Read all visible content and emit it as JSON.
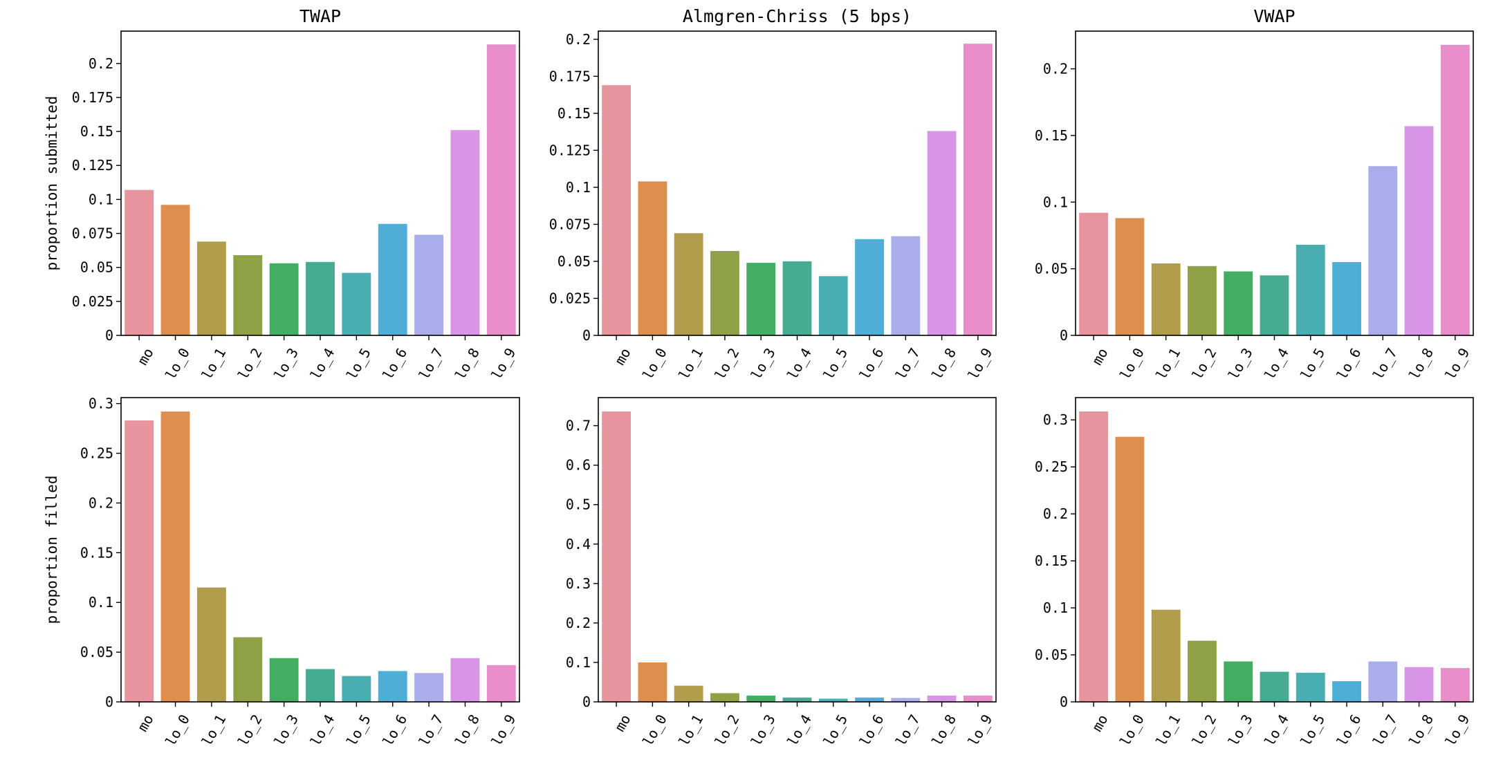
{
  "chart_data": [
    {
      "type": "bar",
      "title": "TWAP",
      "ylabel": "proportion submitted",
      "xlabel": "",
      "categories": [
        "mo",
        "lo_0",
        "lo_1",
        "lo_2",
        "lo_3",
        "lo_4",
        "lo_5",
        "lo_6",
        "lo_7",
        "lo_8",
        "lo_9"
      ],
      "values": [
        0.107,
        0.096,
        0.069,
        0.059,
        0.053,
        0.054,
        0.046,
        0.082,
        0.074,
        0.151,
        0.214
      ],
      "ylim": [
        0,
        0.2238
      ],
      "yticks": [
        0,
        0.025,
        0.05,
        0.075,
        0.1,
        0.125,
        0.15,
        0.175,
        0.2
      ],
      "ytick_labels": [
        "0",
        "0.025",
        "0.05",
        "0.075",
        "0.1",
        "0.125",
        "0.15",
        "0.175",
        "0.2"
      ]
    },
    {
      "type": "bar",
      "title": "Almgren-Chriss (5 bps)",
      "ylabel": "",
      "xlabel": "",
      "categories": [
        "mo",
        "lo_0",
        "lo_1",
        "lo_2",
        "lo_3",
        "lo_4",
        "lo_5",
        "lo_6",
        "lo_7",
        "lo_8",
        "lo_9"
      ],
      "values": [
        0.169,
        0.104,
        0.069,
        0.057,
        0.049,
        0.05,
        0.04,
        0.065,
        0.067,
        0.138,
        0.197
      ],
      "ylim": [
        0,
        0.2055
      ],
      "yticks": [
        0,
        0.025,
        0.05,
        0.075,
        0.1,
        0.125,
        0.15,
        0.175,
        0.2
      ],
      "ytick_labels": [
        "0",
        "0.025",
        "0.05",
        "0.075",
        "0.1",
        "0.125",
        "0.15",
        "0.175",
        "0.2"
      ]
    },
    {
      "type": "bar",
      "title": "VWAP",
      "ylabel": "",
      "xlabel": "",
      "categories": [
        "mo",
        "lo_0",
        "lo_1",
        "lo_2",
        "lo_3",
        "lo_4",
        "lo_5",
        "lo_6",
        "lo_7",
        "lo_8",
        "lo_9"
      ],
      "values": [
        0.092,
        0.088,
        0.054,
        0.052,
        0.048,
        0.045,
        0.068,
        0.055,
        0.127,
        0.157,
        0.218
      ],
      "ylim": [
        0,
        0.2283
      ],
      "yticks": [
        0,
        0.05,
        0.1,
        0.15,
        0.2
      ],
      "ytick_labels": [
        "0",
        "0.05",
        "0.1",
        "0.15",
        "0.2"
      ]
    },
    {
      "type": "bar",
      "title": "",
      "ylabel": "proportion filled",
      "xlabel": "",
      "categories": [
        "mo",
        "lo_0",
        "lo_1",
        "lo_2",
        "lo_3",
        "lo_4",
        "lo_5",
        "lo_6",
        "lo_7",
        "lo_8",
        "lo_9"
      ],
      "values": [
        0.283,
        0.292,
        0.115,
        0.065,
        0.044,
        0.033,
        0.026,
        0.031,
        0.029,
        0.044,
        0.037
      ],
      "ylim": [
        0,
        0.306
      ],
      "yticks": [
        0,
        0.05,
        0.1,
        0.15,
        0.2,
        0.25,
        0.3
      ],
      "ytick_labels": [
        "0",
        "0.05",
        "0.1",
        "0.15",
        "0.2",
        "0.25",
        "0.3"
      ]
    },
    {
      "type": "bar",
      "title": "",
      "ylabel": "",
      "xlabel": "",
      "categories": [
        "mo",
        "lo_0",
        "lo_1",
        "lo_2",
        "lo_3",
        "lo_4",
        "lo_5",
        "lo_6",
        "lo_7",
        "lo_8",
        "lo_9"
      ],
      "values": [
        0.736,
        0.1,
        0.041,
        0.022,
        0.016,
        0.011,
        0.008,
        0.011,
        0.01,
        0.016,
        0.016
      ],
      "ylim": [
        0,
        0.7712
      ],
      "yticks": [
        0,
        0.1,
        0.2,
        0.3,
        0.4,
        0.5,
        0.6,
        0.7
      ],
      "ytick_labels": [
        "0",
        "0.1",
        "0.2",
        "0.3",
        "0.4",
        "0.5",
        "0.6",
        "0.7"
      ]
    },
    {
      "type": "bar",
      "title": "",
      "ylabel": "",
      "xlabel": "",
      "categories": [
        "mo",
        "lo_0",
        "lo_1",
        "lo_2",
        "lo_3",
        "lo_4",
        "lo_5",
        "lo_6",
        "lo_7",
        "lo_8",
        "lo_9"
      ],
      "values": [
        0.309,
        0.282,
        0.098,
        0.065,
        0.043,
        0.032,
        0.031,
        0.022,
        0.043,
        0.037,
        0.036
      ],
      "ylim": [
        0,
        0.3237
      ],
      "yticks": [
        0,
        0.05,
        0.1,
        0.15,
        0.2,
        0.25,
        0.3
      ],
      "ytick_labels": [
        "0",
        "0.05",
        "0.1",
        "0.15",
        "0.2",
        "0.25",
        "0.3"
      ]
    }
  ],
  "colors": [
    "#e8949f",
    "#dc8f4f",
    "#b09c4a",
    "#8ea245",
    "#43ad63",
    "#45ab93",
    "#49aeb2",
    "#4eaed6",
    "#a9aeea",
    "#d894e5",
    "#e78ecb"
  ]
}
